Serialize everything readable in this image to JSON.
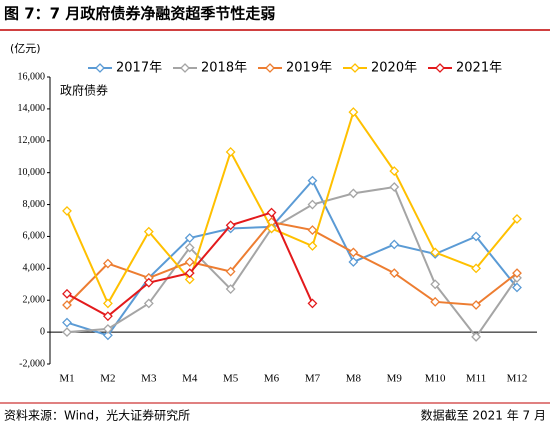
{
  "chart_data": {
    "type": "line",
    "title": "图 7：7 月政府债券净融资超季节性走弱",
    "y_unit": "(亿元)",
    "annotation": "政府债券",
    "source": "资料来源：Wind，光大证券研究所",
    "note": "数据截至 2021 年 7 月",
    "categories": [
      "M1",
      "M2",
      "M3",
      "M4",
      "M5",
      "M6",
      "M7",
      "M8",
      "M9",
      "M10",
      "M11",
      "M12"
    ],
    "series": [
      {
        "name": "2017年",
        "color": "#5b9bd5",
        "values": [
          600,
          -200,
          3400,
          5900,
          6500,
          6600,
          9500,
          4400,
          5500,
          4900,
          6000,
          2800
        ]
      },
      {
        "name": "2018年",
        "color": "#a5a5a5",
        "values": [
          0,
          200,
          1800,
          5300,
          2700,
          6500,
          8000,
          8700,
          9100,
          3000,
          -300,
          3400
        ]
      },
      {
        "name": "2019年",
        "color": "#ed7d31",
        "values": [
          1700,
          4300,
          3400,
          4400,
          3800,
          6900,
          6400,
          5000,
          3700,
          1900,
          1700,
          3700
        ]
      },
      {
        "name": "2020年",
        "color": "#ffc000",
        "values": [
          7600,
          1800,
          6300,
          3300,
          11300,
          6500,
          5400,
          13800,
          10100,
          5000,
          4000,
          7100
        ]
      },
      {
        "name": "2021年",
        "color": "#e31a1c",
        "values": [
          2400,
          1000,
          3100,
          3700,
          6700,
          7500,
          1800,
          null,
          null,
          null,
          null,
          null
        ]
      }
    ],
    "ylim": [
      -2000,
      16000
    ],
    "yticks": [
      {
        "value": -2000,
        "label": "-2,000"
      },
      0,
      {
        "value": 2000,
        "label": "2,000"
      },
      {
        "value": 4000,
        "label": "4,000"
      },
      {
        "value": 6000,
        "label": "6,000"
      },
      {
        "value": 8000,
        "label": "8,000"
      },
      {
        "value": 10000,
        "label": "10,000"
      },
      {
        "value": 12000,
        "label": "12,000"
      },
      {
        "value": 14000,
        "label": "14,000"
      },
      {
        "value": 16000,
        "label": "16,000"
      }
    ]
  }
}
